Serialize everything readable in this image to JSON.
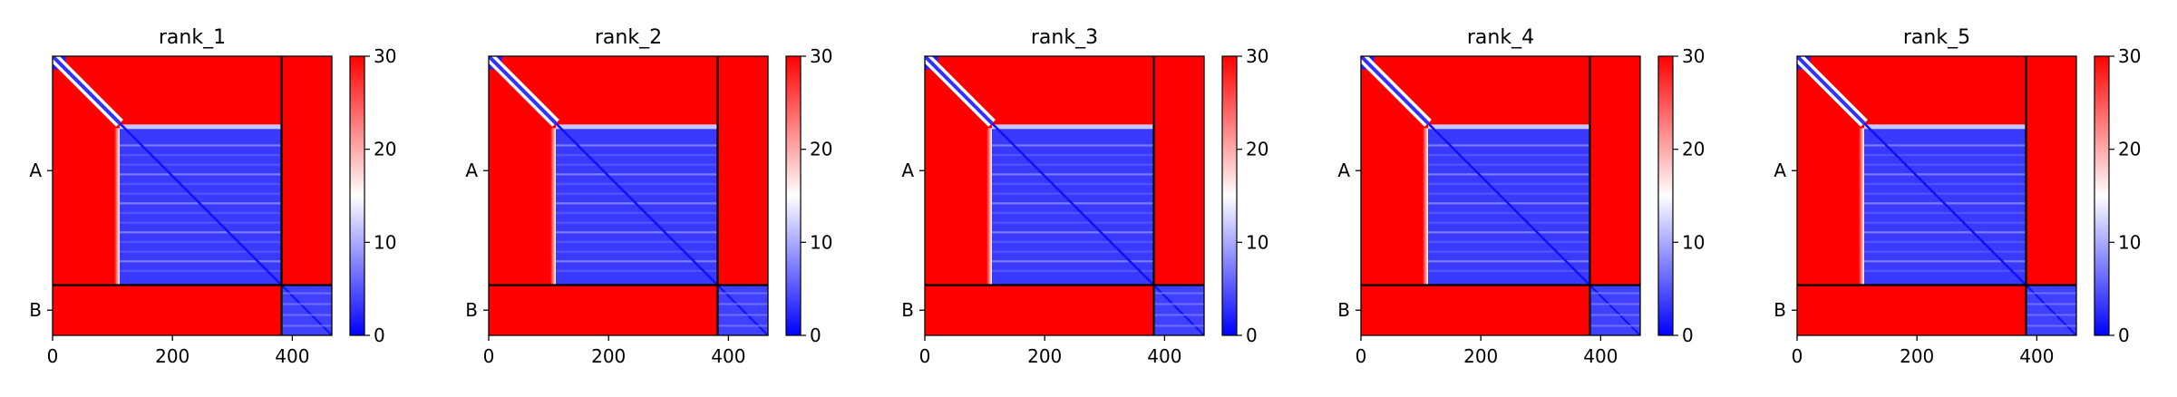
{
  "chart_data": [
    {
      "type": "heatmap",
      "title": "rank_1",
      "x_ticks": [
        0,
        200,
        400
      ],
      "y_labels": [
        "A",
        "B"
      ],
      "chain_lengths": [
        382,
        84
      ],
      "xlim": [
        0,
        466
      ],
      "colorbar": {
        "min": 0,
        "max": 30,
        "ticks": [
          0,
          10,
          20,
          30
        ],
        "colors": [
          "#0000ff",
          "#ffffff",
          "#ff0000"
        ]
      },
      "core_region": [
        112,
        382
      ],
      "core_top_row": 120,
      "b_self_blue": true
    },
    {
      "type": "heatmap",
      "title": "rank_2",
      "x_ticks": [
        0,
        200,
        400
      ],
      "y_labels": [
        "A",
        "B"
      ],
      "chain_lengths": [
        382,
        84
      ],
      "xlim": [
        0,
        466
      ],
      "colorbar": {
        "min": 0,
        "max": 30,
        "ticks": [
          0,
          10,
          20,
          30
        ],
        "colors": [
          "#0000ff",
          "#ffffff",
          "#ff0000"
        ]
      },
      "core_region": [
        112,
        382
      ],
      "core_top_row": 120,
      "b_self_blue": true
    },
    {
      "type": "heatmap",
      "title": "rank_3",
      "x_ticks": [
        0,
        200,
        400
      ],
      "y_labels": [
        "A",
        "B"
      ],
      "chain_lengths": [
        382,
        84
      ],
      "xlim": [
        0,
        466
      ],
      "colorbar": {
        "min": 0,
        "max": 30,
        "ticks": [
          0,
          10,
          20,
          30
        ],
        "colors": [
          "#0000ff",
          "#ffffff",
          "#ff0000"
        ]
      },
      "core_region": [
        112,
        382
      ],
      "core_top_row": 120,
      "b_self_blue": true
    },
    {
      "type": "heatmap",
      "title": "rank_4",
      "x_ticks": [
        0,
        200,
        400
      ],
      "y_labels": [
        "A",
        "B"
      ],
      "chain_lengths": [
        382,
        84
      ],
      "xlim": [
        0,
        466
      ],
      "colorbar": {
        "min": 0,
        "max": 30,
        "ticks": [
          0,
          10,
          20,
          30
        ],
        "colors": [
          "#0000ff",
          "#ffffff",
          "#ff0000"
        ]
      },
      "core_region": [
        112,
        382
      ],
      "core_top_row": 120,
      "b_self_blue": true
    },
    {
      "type": "heatmap",
      "title": "rank_5",
      "x_ticks": [
        0,
        200,
        400
      ],
      "y_labels": [
        "A",
        "B"
      ],
      "chain_lengths": [
        382,
        84
      ],
      "xlim": [
        0,
        466
      ],
      "colorbar": {
        "min": 0,
        "max": 30,
        "ticks": [
          0,
          10,
          20,
          30
        ],
        "colors": [
          "#0000ff",
          "#ffffff",
          "#ff0000"
        ]
      },
      "core_region": [
        112,
        382
      ],
      "core_top_row": 120,
      "b_self_blue": true
    }
  ]
}
